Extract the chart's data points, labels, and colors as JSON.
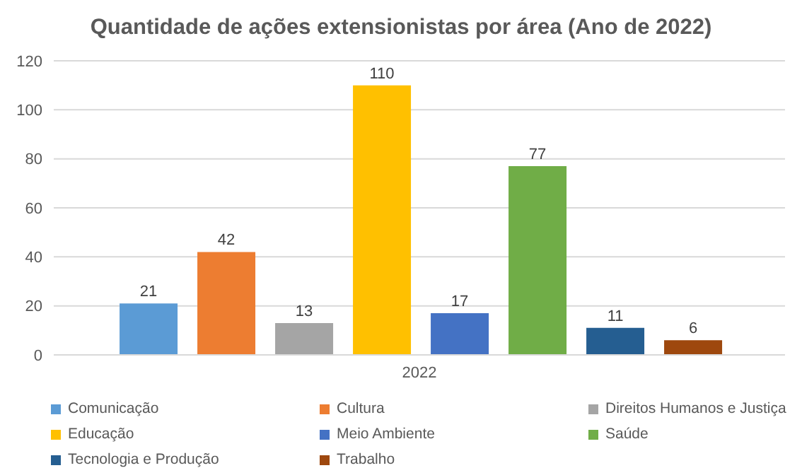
{
  "chart_data": {
    "type": "bar",
    "title": "Quantidade de ações extensionistas por área (Ano de 2022)",
    "categories": [
      "2022"
    ],
    "series": [
      {
        "name": "Comunicação",
        "color": "#5b9bd5",
        "values": [
          21
        ]
      },
      {
        "name": "Cultura",
        "color": "#ed7d31",
        "values": [
          42
        ]
      },
      {
        "name": "Direitos Humanos e Justiça",
        "color": "#a5a5a5",
        "values": [
          13
        ]
      },
      {
        "name": "Educação",
        "color": "#ffc000",
        "values": [
          110
        ]
      },
      {
        "name": "Meio Ambiente",
        "color": "#4472c4",
        "values": [
          17
        ]
      },
      {
        "name": "Saúde",
        "color": "#70ad47",
        "values": [
          77
        ]
      },
      {
        "name": "Tecnologia e Produção",
        "color": "#255e91",
        "values": [
          11
        ]
      },
      {
        "name": "Trabalho",
        "color": "#9e480e",
        "values": [
          6
        ]
      }
    ],
    "ylim": [
      0,
      120
    ],
    "yticks": [
      0,
      20,
      40,
      60,
      80,
      100,
      120
    ],
    "grid": "y",
    "legend": "bottom",
    "data_labels": true
  }
}
